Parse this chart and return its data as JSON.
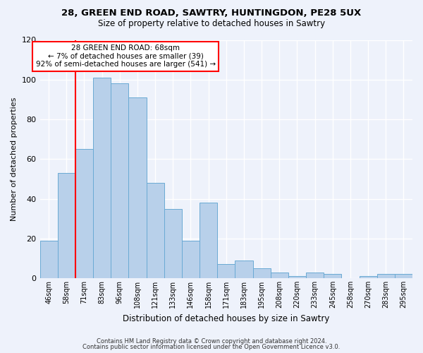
{
  "title1": "28, GREEN END ROAD, SAWTRY, HUNTINGDON, PE28 5UX",
  "title2": "Size of property relative to detached houses in Sawtry",
  "xlabel": "Distribution of detached houses by size in Sawtry",
  "ylabel": "Number of detached properties",
  "bin_labels": [
    "46sqm",
    "58sqm",
    "71sqm",
    "83sqm",
    "96sqm",
    "108sqm",
    "121sqm",
    "133sqm",
    "146sqm",
    "158sqm",
    "171sqm",
    "183sqm",
    "195sqm",
    "208sqm",
    "220sqm",
    "233sqm",
    "245sqm",
    "258sqm",
    "270sqm",
    "283sqm",
    "295sqm"
  ],
  "bar_values": [
    19,
    53,
    65,
    101,
    98,
    91,
    48,
    35,
    19,
    38,
    7,
    9,
    5,
    3,
    1,
    3,
    2,
    0,
    1,
    2,
    2
  ],
  "bar_color": "#b8d0ea",
  "bar_edge_color": "#6aaad4",
  "bar_width": 1.0,
  "ylim": [
    0,
    120
  ],
  "yticks": [
    0,
    20,
    40,
    60,
    80,
    100,
    120
  ],
  "red_line_bin_index": 2,
  "annotation_title": "28 GREEN END ROAD: 68sqm",
  "annotation_line1": "← 7% of detached houses are smaller (39)",
  "annotation_line2": "92% of semi-detached houses are larger (541) →",
  "footer1": "Contains HM Land Registry data © Crown copyright and database right 2024.",
  "footer2": "Contains public sector information licensed under the Open Government Licence v3.0.",
  "bg_color": "#eef2fb",
  "plot_bg_color": "#eef2fb",
  "grid_color": "#ffffff",
  "title1_fontsize": 9.5,
  "title2_fontsize": 8.5,
  "ylabel_fontsize": 8,
  "xlabel_fontsize": 8.5,
  "tick_fontsize": 7,
  "footer_fontsize": 6,
  "ann_fontsize": 7.5
}
